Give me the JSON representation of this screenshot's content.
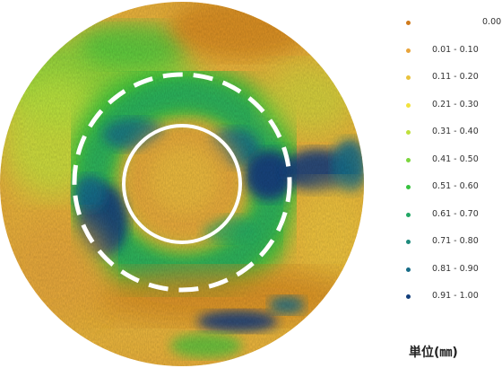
{
  "map": {
    "gradient": [
      "#cf8a1e",
      "#e4a63a",
      "#e9c23d",
      "#f2e23c",
      "#bfe03c",
      "#7bd63d",
      "#37c23e",
      "#22a765",
      "#1e8a7c",
      "#176c87",
      "#123e7b"
    ]
  },
  "legend": {
    "items": [
      {
        "label": "0.00",
        "color": "#cf7a1c"
      },
      {
        "label": "0.01 - 0.10",
        "color": "#e8a43a"
      },
      {
        "label": "0.11 - 0.20",
        "color": "#e9c23d"
      },
      {
        "label": "0.21 - 0.30",
        "color": "#f2e23c"
      },
      {
        "label": "0.31 - 0.40",
        "color": "#bfe03c"
      },
      {
        "label": "0.41 - 0.50",
        "color": "#7bd63d"
      },
      {
        "label": "0.51 - 0.60",
        "color": "#37c23e"
      },
      {
        "label": "0.61 - 0.70",
        "color": "#22a765"
      },
      {
        "label": "0.71 - 0.80",
        "color": "#1e8a7c"
      },
      {
        "label": "0.81 - 0.90",
        "color": "#176c87"
      },
      {
        "label": "0.91 - 1.00",
        "color": "#123e7b"
      }
    ],
    "unit": "単位(㎜)"
  }
}
